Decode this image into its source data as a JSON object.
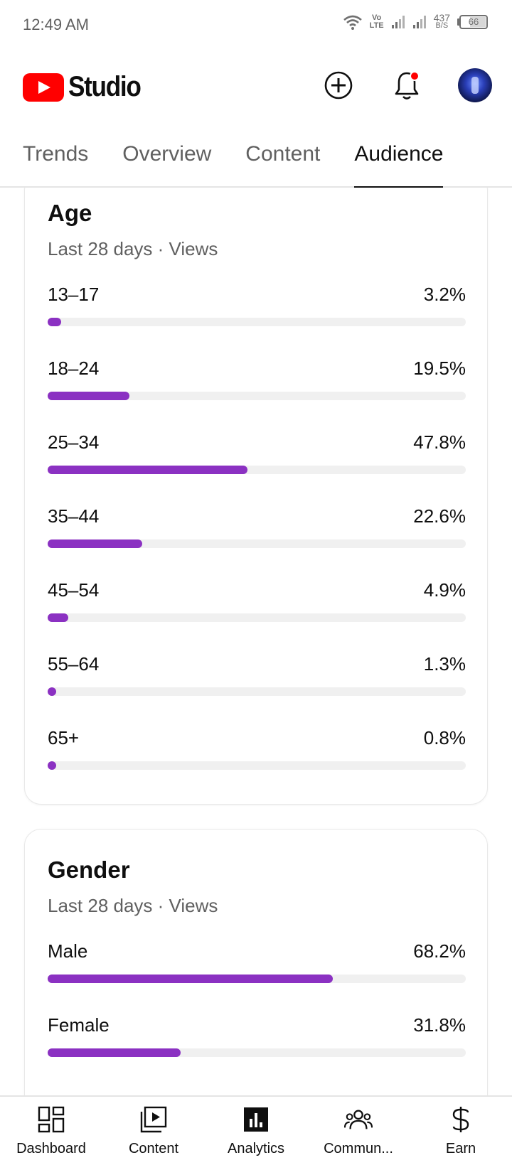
{
  "status_bar": {
    "time": "12:49 AM",
    "volte_top": "Vo",
    "volte_bottom": "LTE",
    "net_speed": "437",
    "net_unit": "B/S",
    "battery": "66"
  },
  "header": {
    "logo_text": "Studio",
    "icons": [
      "create-icon",
      "notifications-icon",
      "avatar"
    ],
    "accent_color": "#ff0000"
  },
  "tabs": [
    {
      "label": "Trends",
      "active": false
    },
    {
      "label": "Overview",
      "active": false
    },
    {
      "label": "Content",
      "active": false
    },
    {
      "label": "Audience",
      "active": true
    }
  ],
  "age": {
    "title": "Age",
    "subtitle": "Last 28 days · Views",
    "bar_color": "#8b31c2",
    "rows": [
      {
        "label": "13–17",
        "value": "3.2%",
        "pct": 3.2
      },
      {
        "label": "18–24",
        "value": "19.5%",
        "pct": 19.5
      },
      {
        "label": "25–34",
        "value": "47.8%",
        "pct": 47.8
      },
      {
        "label": "35–44",
        "value": "22.6%",
        "pct": 22.6
      },
      {
        "label": "45–54",
        "value": "4.9%",
        "pct": 4.9
      },
      {
        "label": "55–64",
        "value": "1.3%",
        "pct": 1.3
      },
      {
        "label": "65+",
        "value": "0.8%",
        "pct": 0.8
      }
    ]
  },
  "gender": {
    "title": "Gender",
    "subtitle": "Last 28 days · Views",
    "bar_color": "#8b31c2",
    "rows": [
      {
        "label": "Male",
        "value": "68.2%",
        "pct": 68.2
      },
      {
        "label": "Female",
        "value": "31.8%",
        "pct": 31.8
      }
    ]
  },
  "bottom_nav": [
    {
      "label": "Dashboard",
      "icon": "dashboard-icon"
    },
    {
      "label": "Content",
      "icon": "content-icon"
    },
    {
      "label": "Analytics",
      "icon": "analytics-icon"
    },
    {
      "label": "Commun...",
      "icon": "community-icon"
    },
    {
      "label": "Earn",
      "icon": "earn-icon"
    }
  ]
}
